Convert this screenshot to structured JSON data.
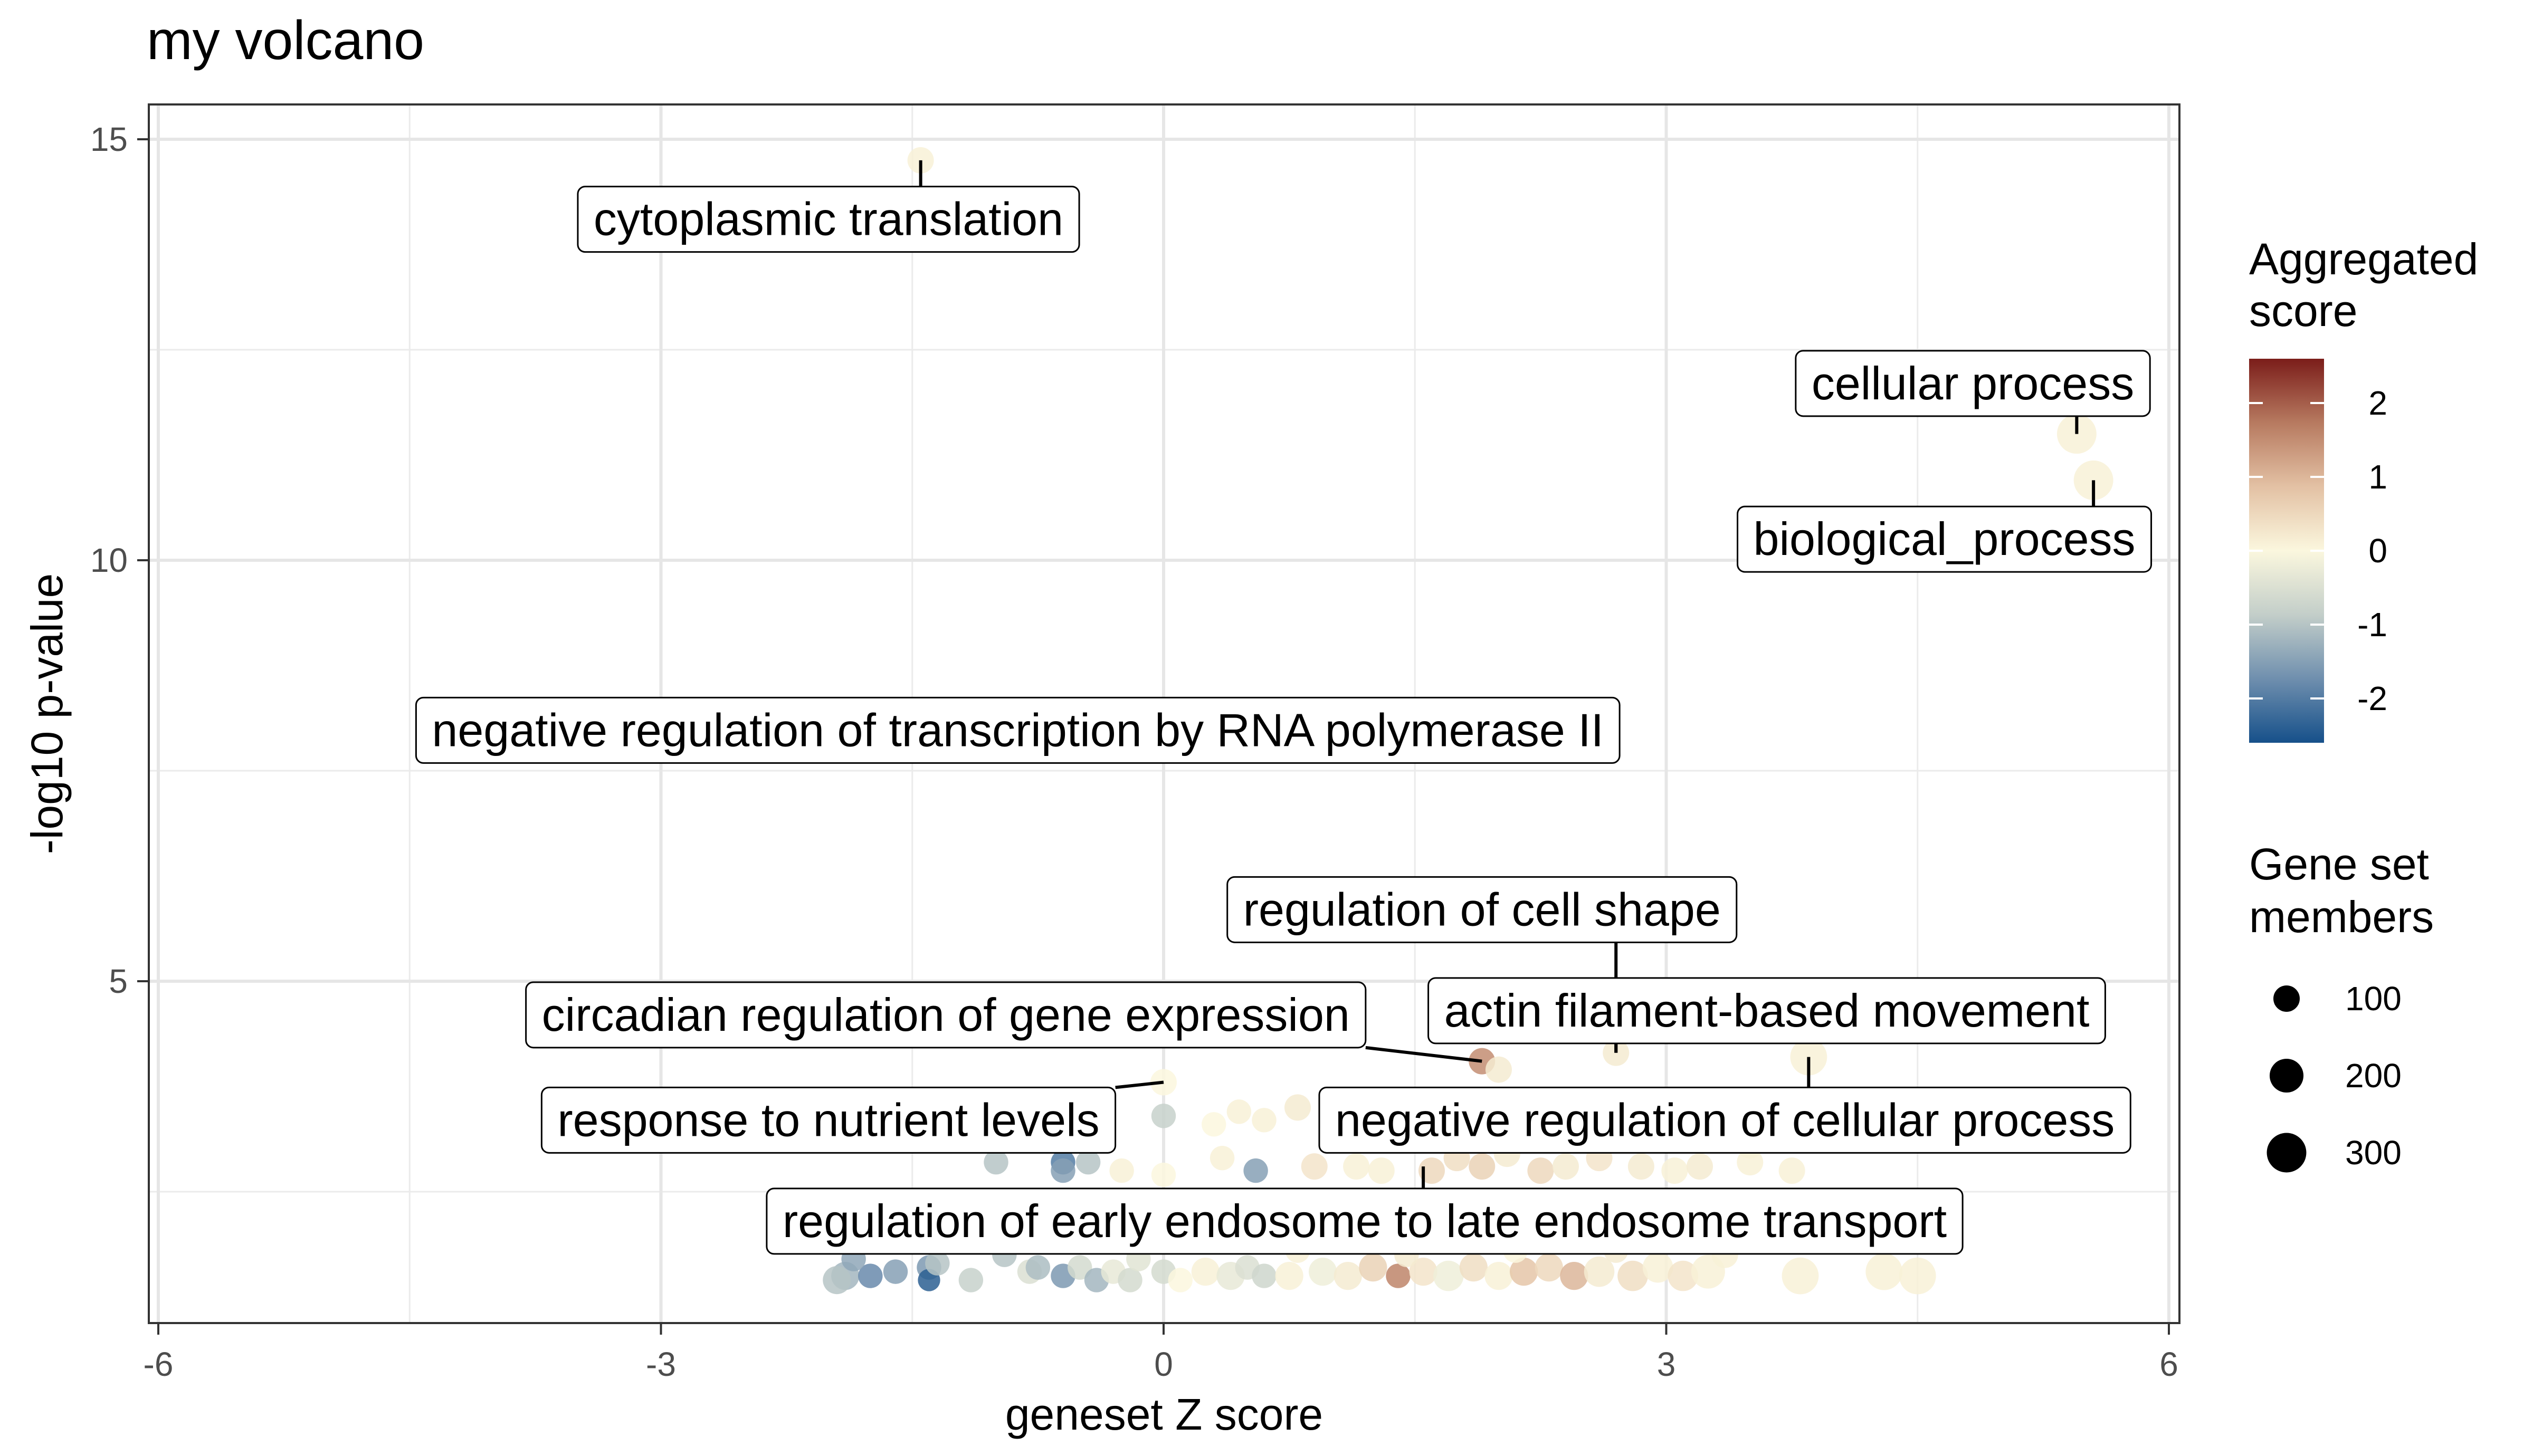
{
  "chart_data": {
    "type": "scatter",
    "title": "my volcano",
    "xlabel": "geneset Z score",
    "ylabel": "-log10 p-value",
    "xlim": [
      -6,
      6
    ],
    "ylim": [
      1.4,
      15.5
    ],
    "xticks": [
      -6,
      -3,
      0,
      3,
      6
    ],
    "yticks": [
      5,
      10,
      15
    ],
    "grid": true,
    "legend_position": "right",
    "color_legend": {
      "title_lines": [
        "Aggregated",
        "score"
      ],
      "ticks": [
        "2",
        "1",
        "0",
        "-1",
        "-2"
      ],
      "tick_values": [
        2,
        1,
        0,
        -1,
        -2
      ],
      "range": [
        -2.6,
        2.6
      ],
      "colors": [
        "#16508a",
        "#6f8fae",
        "#c3cec9",
        "#fbf7de",
        "#e3c1a4",
        "#b77a60",
        "#7b1d1a"
      ]
    },
    "size_legend": {
      "title_lines": [
        "Gene set",
        "members"
      ],
      "entries": [
        {
          "label": "100",
          "value": 100
        },
        {
          "label": "200",
          "value": 200
        },
        {
          "label": "300",
          "value": 300
        }
      ]
    },
    "points": [
      {
        "x": -1.45,
        "y": 14.75,
        "score": 0.1,
        "members": 100
      },
      {
        "x": 5.45,
        "y": 11.5,
        "score": 0.1,
        "members": 300
      },
      {
        "x": 5.55,
        "y": 10.95,
        "score": 0.1,
        "members": 300
      },
      {
        "x": 3.85,
        "y": 4.1,
        "score": 0.1,
        "members": 250
      },
      {
        "x": 2.7,
        "y": 4.15,
        "score": 0.2,
        "members": 100
      },
      {
        "x": 1.9,
        "y": 4.05,
        "score": 1.5,
        "members": 100
      },
      {
        "x": 2.0,
        "y": 3.95,
        "score": 0.2,
        "members": 100
      },
      {
        "x": 0.0,
        "y": 3.8,
        "score": 0.0,
        "members": 100
      },
      {
        "x": 0.0,
        "y": 3.4,
        "score": -0.8,
        "members": 80
      },
      {
        "x": 0.3,
        "y": 3.3,
        "score": 0.0,
        "members": 80
      },
      {
        "x": 0.45,
        "y": 3.45,
        "score": 0.1,
        "members": 80
      },
      {
        "x": 0.6,
        "y": 3.35,
        "score": 0.1,
        "members": 80
      },
      {
        "x": -0.6,
        "y": 2.85,
        "score": -2.0,
        "members": 80
      },
      {
        "x": -0.6,
        "y": 2.75,
        "score": -1.5,
        "members": 80
      },
      {
        "x": -0.45,
        "y": 2.85,
        "score": -1.0,
        "members": 80
      },
      {
        "x": -0.25,
        "y": 2.75,
        "score": 0.1,
        "members": 80
      },
      {
        "x": -1.0,
        "y": 2.85,
        "score": -1.0,
        "members": 80
      },
      {
        "x": 0.0,
        "y": 2.7,
        "score": 0.0,
        "members": 80
      },
      {
        "x": 0.35,
        "y": 2.9,
        "score": 0.1,
        "members": 80
      },
      {
        "x": 0.55,
        "y": 2.75,
        "score": -1.5,
        "members": 80
      },
      {
        "x": 0.9,
        "y": 2.8,
        "score": 0.3,
        "members": 100
      },
      {
        "x": 1.15,
        "y": 2.8,
        "score": 0.1,
        "members": 100
      },
      {
        "x": 1.3,
        "y": 2.75,
        "score": 0.1,
        "members": 100
      },
      {
        "x": 1.6,
        "y": 2.75,
        "score": 0.5,
        "members": 100
      },
      {
        "x": 1.75,
        "y": 2.9,
        "score": 0.4,
        "members": 100
      },
      {
        "x": 1.9,
        "y": 2.8,
        "score": 0.6,
        "members": 100
      },
      {
        "x": 2.05,
        "y": 2.95,
        "score": 0.2,
        "members": 100
      },
      {
        "x": 2.25,
        "y": 2.75,
        "score": 0.5,
        "members": 100
      },
      {
        "x": 2.4,
        "y": 2.8,
        "score": 0.2,
        "members": 100
      },
      {
        "x": 2.6,
        "y": 2.9,
        "score": 0.3,
        "members": 100
      },
      {
        "x": 2.85,
        "y": 2.8,
        "score": 0.2,
        "members": 100
      },
      {
        "x": 3.05,
        "y": 2.75,
        "score": 0.1,
        "members": 100
      },
      {
        "x": 3.2,
        "y": 2.8,
        "score": 0.2,
        "members": 100
      },
      {
        "x": 3.5,
        "y": 2.85,
        "score": 0.1,
        "members": 100
      },
      {
        "x": 3.75,
        "y": 2.75,
        "score": 0.1,
        "members": 100
      },
      {
        "x": 3.5,
        "y": 3.05,
        "score": 0.1,
        "members": 100
      },
      {
        "x": 0.8,
        "y": 3.5,
        "score": 0.2,
        "members": 100
      },
      {
        "x": 1.5,
        "y": 2.1,
        "score": 0.0,
        "members": 100
      },
      {
        "x": 2.2,
        "y": 2.15,
        "score": 0.1,
        "members": 100
      },
      {
        "x": 1.7,
        "y": 2.0,
        "score": 0.4,
        "members": 100
      },
      {
        "x": 2.95,
        "y": 2.05,
        "score": 0.1,
        "members": 100
      },
      {
        "x": -1.9,
        "y": 1.5,
        "score": -1.2,
        "members": 120
      },
      {
        "x": -1.95,
        "y": 1.45,
        "score": -1.0,
        "members": 120
      },
      {
        "x": -1.75,
        "y": 1.5,
        "score": -1.8,
        "members": 80
      },
      {
        "x": -1.6,
        "y": 1.55,
        "score": -1.5,
        "members": 80
      },
      {
        "x": -1.85,
        "y": 1.7,
        "score": -1.4,
        "members": 80
      },
      {
        "x": -1.4,
        "y": 1.6,
        "score": -1.6,
        "members": 80
      },
      {
        "x": -1.4,
        "y": 1.45,
        "score": -2.4,
        "members": 60
      },
      {
        "x": -1.15,
        "y": 1.45,
        "score": -0.8,
        "members": 80
      },
      {
        "x": -1.35,
        "y": 1.65,
        "score": -1.0,
        "members": 80
      },
      {
        "x": -0.95,
        "y": 1.75,
        "score": -1.0,
        "members": 80
      },
      {
        "x": -0.8,
        "y": 1.55,
        "score": -0.5,
        "members": 80
      },
      {
        "x": -0.6,
        "y": 1.5,
        "score": -1.6,
        "members": 80
      },
      {
        "x": -0.5,
        "y": 1.6,
        "score": -0.6,
        "members": 80
      },
      {
        "x": -0.4,
        "y": 1.45,
        "score": -1.2,
        "members": 80
      },
      {
        "x": -0.3,
        "y": 1.55,
        "score": -0.3,
        "members": 80
      },
      {
        "x": -0.2,
        "y": 1.45,
        "score": -0.6,
        "members": 80
      },
      {
        "x": -0.75,
        "y": 1.6,
        "score": -1.1,
        "members": 80
      },
      {
        "x": -0.15,
        "y": 1.7,
        "score": -0.4,
        "members": 80
      },
      {
        "x": 0.0,
        "y": 1.55,
        "score": -0.6,
        "members": 80
      },
      {
        "x": 0.1,
        "y": 1.45,
        "score": 0.0,
        "members": 80
      },
      {
        "x": 0.25,
        "y": 1.55,
        "score": 0.1,
        "members": 120
      },
      {
        "x": 0.4,
        "y": 1.5,
        "score": -0.3,
        "members": 120
      },
      {
        "x": 0.5,
        "y": 1.6,
        "score": -0.5,
        "members": 80
      },
      {
        "x": 0.6,
        "y": 1.5,
        "score": -0.7,
        "members": 80
      },
      {
        "x": 0.75,
        "y": 1.5,
        "score": 0.1,
        "members": 120
      },
      {
        "x": 0.95,
        "y": 1.55,
        "score": -0.2,
        "members": 120
      },
      {
        "x": 1.1,
        "y": 1.5,
        "score": 0.2,
        "members": 120
      },
      {
        "x": 1.25,
        "y": 1.6,
        "score": 0.6,
        "members": 120
      },
      {
        "x": 1.4,
        "y": 1.5,
        "score": 1.6,
        "members": 80
      },
      {
        "x": 1.55,
        "y": 1.55,
        "score": 0.3,
        "members": 120
      },
      {
        "x": 1.7,
        "y": 1.5,
        "score": -0.2,
        "members": 150
      },
      {
        "x": 1.85,
        "y": 1.6,
        "score": 0.4,
        "members": 120
      },
      {
        "x": 2.0,
        "y": 1.5,
        "score": 0.1,
        "members": 120
      },
      {
        "x": 2.15,
        "y": 1.55,
        "score": 0.8,
        "members": 120
      },
      {
        "x": 2.3,
        "y": 1.6,
        "score": 0.5,
        "members": 120
      },
      {
        "x": 2.45,
        "y": 1.5,
        "score": 1.0,
        "members": 120
      },
      {
        "x": 2.6,
        "y": 1.55,
        "score": 0.2,
        "members": 150
      },
      {
        "x": 2.8,
        "y": 1.5,
        "score": 0.4,
        "members": 150
      },
      {
        "x": 2.95,
        "y": 1.6,
        "score": 0.1,
        "members": 150
      },
      {
        "x": 3.1,
        "y": 1.5,
        "score": 0.3,
        "members": 150
      },
      {
        "x": 3.25,
        "y": 1.55,
        "score": 0.1,
        "members": 200
      },
      {
        "x": 3.8,
        "y": 1.5,
        "score": 0.1,
        "members": 250
      },
      {
        "x": 4.3,
        "y": 1.55,
        "score": 0.1,
        "members": 250
      },
      {
        "x": 4.5,
        "y": 1.5,
        "score": 0.1,
        "members": 250
      },
      {
        "x": 1.45,
        "y": 1.75,
        "score": 0.2,
        "members": 80
      },
      {
        "x": 2.1,
        "y": 1.8,
        "score": 0.0,
        "members": 80
      },
      {
        "x": 2.7,
        "y": 1.8,
        "score": 0.2,
        "members": 80
      },
      {
        "x": 3.35,
        "y": 1.75,
        "score": 0.1,
        "members": 100
      },
      {
        "x": 0.8,
        "y": 1.8,
        "score": 0.1,
        "members": 80
      },
      {
        "x": 1.0,
        "y": 2.2,
        "score": 0.1,
        "members": 80
      },
      {
        "x": 3.0,
        "y": 2.3,
        "score": 0.3,
        "members": 80
      }
    ],
    "labels": [
      {
        "text": "cytoplasmic translation",
        "px": -1.45,
        "py": 14.75,
        "lx": -2.0,
        "ly": 14.05,
        "anchor": "middle"
      },
      {
        "text": "cellular process",
        "px": 5.45,
        "py": 11.5,
        "lx": 4.83,
        "ly": 12.1,
        "anchor": "middle"
      },
      {
        "text": "biological_process",
        "px": 5.55,
        "py": 10.95,
        "lx": 4.66,
        "ly": 10.25,
        "anchor": "middle"
      },
      {
        "text": "negative regulation of transcription by RNA polymerase II",
        "px": null,
        "py": null,
        "lx": -0.87,
        "ly": 7.98,
        "anchor": "middle"
      },
      {
        "text": "regulation of cell shape",
        "px": 2.7,
        "py": 4.15,
        "lx": 1.9,
        "ly": 5.85,
        "anchor": "middle"
      },
      {
        "text": "circadian regulation of gene expression",
        "px": 1.9,
        "py": 4.05,
        "lx": -1.3,
        "ly": 4.6,
        "anchor": "middle"
      },
      {
        "text": "actin filament-based movement",
        "px": 2.7,
        "py": 4.15,
        "lx": 3.6,
        "ly": 4.65,
        "anchor": "middle"
      },
      {
        "text": "response to nutrient levels",
        "px": 0.0,
        "py": 3.8,
        "lx": -2.0,
        "ly": 3.35,
        "anchor": "middle"
      },
      {
        "text": "negative regulation of cellular process",
        "px": 3.85,
        "py": 4.1,
        "lx": 3.35,
        "ly": 3.35,
        "anchor": "middle"
      },
      {
        "text": "regulation of early endosome to late endosome transport",
        "px": 1.55,
        "py": 2.8,
        "lx": 1.2,
        "ly": 2.15,
        "anchor": "middle"
      }
    ]
  }
}
